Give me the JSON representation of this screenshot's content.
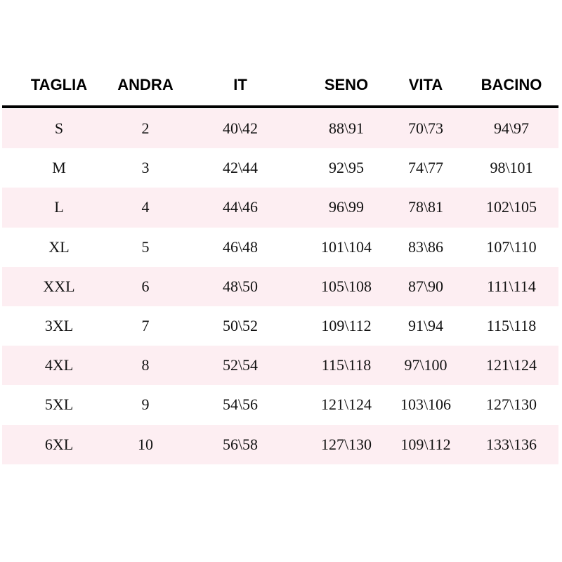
{
  "table": {
    "headers": [
      "TAGLIA",
      "ANDRA",
      "IT",
      "SENO",
      "VITA",
      "BACINO"
    ],
    "rows": [
      [
        "S",
        "2",
        "40\\42",
        "88\\91",
        "70\\73",
        "94\\97"
      ],
      [
        "M",
        "3",
        "42\\44",
        "92\\95",
        "74\\77",
        "98\\101"
      ],
      [
        "L",
        "4",
        "44\\46",
        "96\\99",
        "78\\81",
        "102\\105"
      ],
      [
        "XL",
        "5",
        "46\\48",
        "101\\104",
        "83\\86",
        "107\\110"
      ],
      [
        "XXL",
        "6",
        "48\\50",
        "105\\108",
        "87\\90",
        "111\\114"
      ],
      [
        "3XL",
        "7",
        "50\\52",
        "109\\112",
        "91\\94",
        "115\\118"
      ],
      [
        "4XL",
        "8",
        "52\\54",
        "115\\118",
        "97\\100",
        "121\\124"
      ],
      [
        "5XL",
        "9",
        "54\\56",
        "121\\124",
        "103\\106",
        "127\\130"
      ],
      [
        "6XL",
        "10",
        "56\\58",
        "127\\130",
        "109\\112",
        "133\\136"
      ]
    ],
    "stripe_color": "#fdeef2",
    "rule_color": "#000000"
  }
}
